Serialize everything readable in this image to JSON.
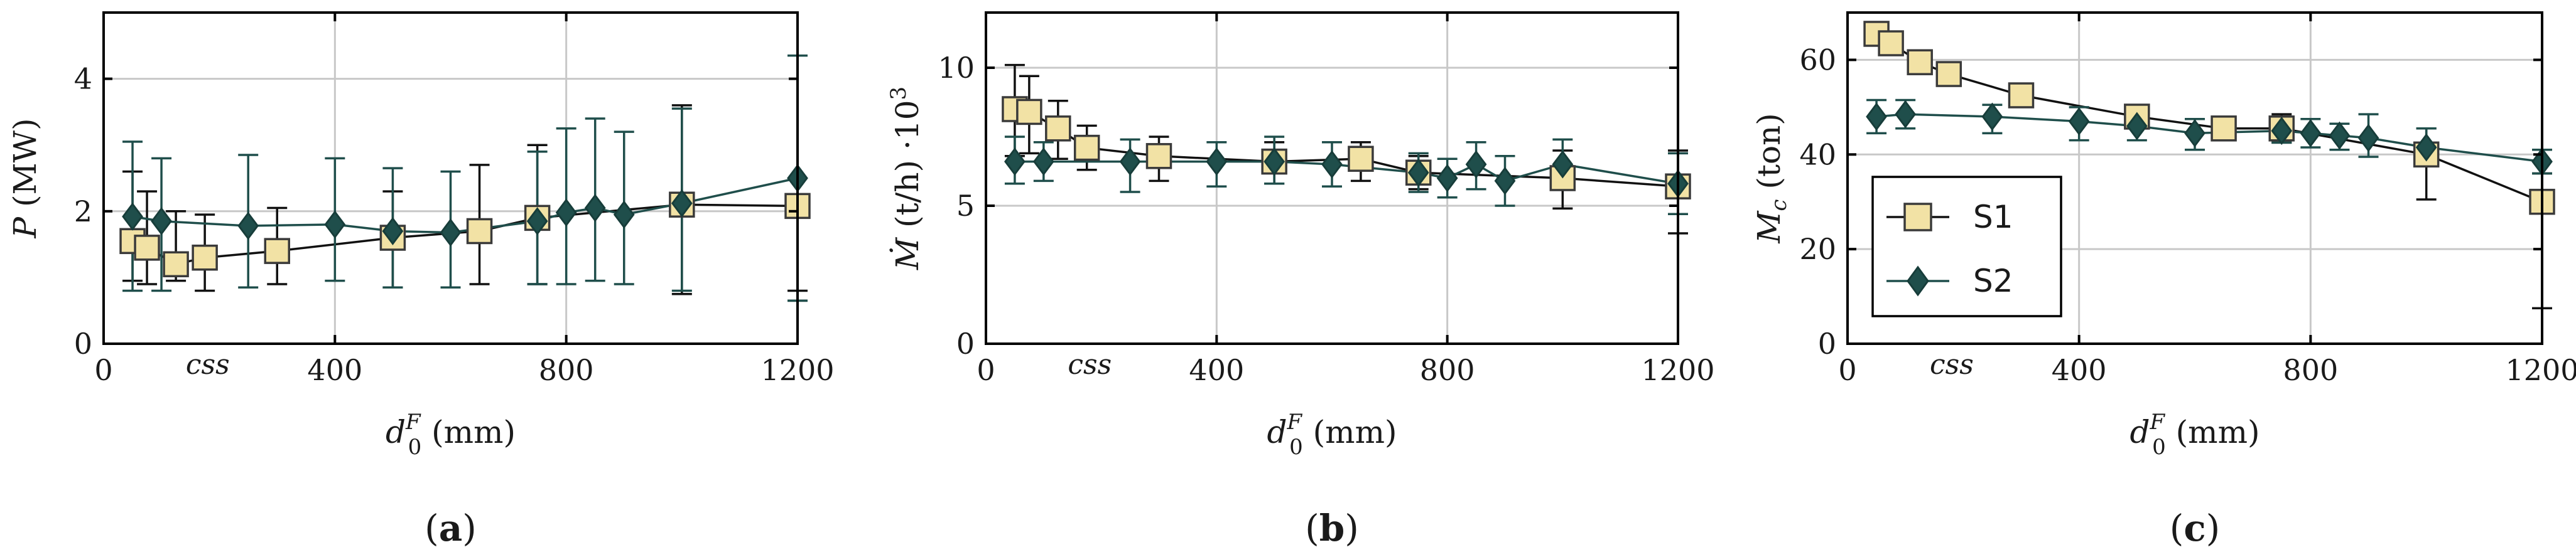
{
  "chart_data": [
    {
      "type": "line",
      "panel_label": "a",
      "ylabel": "P (MW)",
      "ylabel_main": "P",
      "ylabel_unit": " (MW)",
      "xlabel_var": "d",
      "xlabel_sup": "F",
      "xlabel_sub": "0",
      "xlabel_unit": " (mm)",
      "xlim": [
        0,
        1200
      ],
      "ylim": [
        0,
        5
      ],
      "x_ticks": [
        0,
        400,
        800,
        1200
      ],
      "x_tick_labels": [
        "0",
        "400",
        "800",
        "1200"
      ],
      "y_ticks": [
        0,
        2,
        4
      ],
      "y_tick_labels": [
        "0",
        "2",
        "4"
      ],
      "annotation": {
        "text": "css",
        "x": 180
      },
      "grid": true,
      "series": [
        {
          "name": "S1",
          "marker": "square",
          "color": "#f2e2a5",
          "edge": "#3a3a3a",
          "line": "#111111",
          "x": [
            50,
            75,
            125,
            175,
            300,
            500,
            650,
            750,
            1000,
            1200
          ],
          "y": [
            1.55,
            1.45,
            1.2,
            1.3,
            1.4,
            1.6,
            1.7,
            1.9,
            2.1,
            2.08
          ],
          "err_low": [
            0.95,
            0.9,
            0.95,
            0.8,
            0.9,
            0.85,
            0.9,
            0.9,
            0.75,
            0.65
          ],
          "err_high": [
            2.6,
            2.3,
            2.0,
            1.95,
            2.05,
            2.3,
            2.7,
            3.0,
            3.6,
            0.8
          ]
        },
        {
          "name": "S2",
          "marker": "diamond",
          "color": "#1f4e4b",
          "edge": "#173d3a",
          "line": "#1f4e4b",
          "x": [
            50,
            100,
            250,
            400,
            500,
            600,
            750,
            800,
            850,
            900,
            1000,
            1200
          ],
          "y": [
            1.92,
            1.85,
            1.78,
            1.8,
            1.7,
            1.68,
            1.85,
            1.98,
            2.05,
            1.95,
            2.12,
            2.5
          ],
          "err_low": [
            0.8,
            0.8,
            0.85,
            0.95,
            0.85,
            0.85,
            0.9,
            0.9,
            0.95,
            0.9,
            0.8,
            0.65
          ],
          "err_high": [
            3.05,
            2.8,
            2.85,
            2.8,
            2.65,
            2.6,
            2.9,
            3.25,
            3.4,
            3.2,
            3.55,
            4.35
          ]
        }
      ]
    },
    {
      "type": "line",
      "panel_label": "b",
      "ylabel": "Ṁ (t/h) ·10³",
      "ylabel_main": "Ṁ",
      "ylabel_unit": " (t/h) ·10",
      "ylabel_sup": "3",
      "xlabel_var": "d",
      "xlabel_sup": "F",
      "xlabel_sub": "0",
      "xlabel_unit": " (mm)",
      "xlim": [
        0,
        1200
      ],
      "ylim": [
        0,
        12
      ],
      "x_ticks": [
        0,
        400,
        800,
        1200
      ],
      "x_tick_labels": [
        "0",
        "400",
        "800",
        "1200"
      ],
      "y_ticks": [
        0,
        5,
        10
      ],
      "y_tick_labels": [
        "0",
        "5",
        "10"
      ],
      "annotation": {
        "text": "css",
        "x": 180
      },
      "grid": true,
      "series": [
        {
          "name": "S1",
          "marker": "square",
          "color": "#f2e2a5",
          "edge": "#3a3a3a",
          "line": "#111111",
          "x": [
            50,
            75,
            125,
            175,
            300,
            500,
            650,
            750,
            1000,
            1200
          ],
          "y": [
            8.5,
            8.4,
            7.8,
            7.1,
            6.8,
            6.6,
            6.7,
            6.2,
            6.0,
            5.7
          ],
          "err_low": [
            6.8,
            6.9,
            6.7,
            6.3,
            5.9,
            5.8,
            5.9,
            5.6,
            4.9,
            4.0
          ],
          "err_high": [
            10.1,
            9.7,
            8.8,
            7.9,
            7.5,
            7.3,
            7.3,
            6.8,
            7.0,
            7.0
          ]
        },
        {
          "name": "S2",
          "marker": "diamond",
          "color": "#1f4e4b",
          "edge": "#173d3a",
          "line": "#1f4e4b",
          "x": [
            50,
            100,
            250,
            400,
            500,
            600,
            750,
            800,
            850,
            900,
            1000,
            1200
          ],
          "y": [
            6.6,
            6.6,
            6.6,
            6.6,
            6.6,
            6.5,
            6.2,
            6.0,
            6.5,
            5.9,
            6.5,
            5.8
          ],
          "err_low": [
            5.8,
            5.9,
            5.5,
            5.7,
            5.8,
            5.7,
            5.5,
            5.3,
            5.6,
            5.0,
            5.6,
            4.7
          ],
          "err_high": [
            7.5,
            7.3,
            7.4,
            7.3,
            7.5,
            7.3,
            6.9,
            6.7,
            7.3,
            6.8,
            7.4,
            6.9
          ]
        }
      ]
    },
    {
      "type": "line",
      "panel_label": "c",
      "ylabel": "Mc (ton)",
      "ylabel_main": "M",
      "ylabel_sub": "c",
      "ylabel_unit": " (ton)",
      "xlabel_var": "d",
      "xlabel_sup": "F",
      "xlabel_sub": "0",
      "xlabel_unit": " (mm)",
      "xlim": [
        0,
        1200
      ],
      "ylim": [
        0,
        70
      ],
      "x_ticks": [
        0,
        400,
        800,
        1200
      ],
      "x_tick_labels": [
        "0",
        "400",
        "800",
        "1200"
      ],
      "y_ticks": [
        0,
        20,
        40,
        60
      ],
      "y_tick_labels": [
        "0",
        "20",
        "40",
        "60"
      ],
      "annotation": {
        "text": "css",
        "x": 180
      },
      "grid": true,
      "legend": {
        "position": "bottom-left",
        "entries": [
          "S1",
          "S2"
        ]
      },
      "series": [
        {
          "name": "S1",
          "marker": "square",
          "color": "#f2e2a5",
          "edge": "#3a3a3a",
          "line": "#111111",
          "x": [
            50,
            75,
            125,
            175,
            300,
            500,
            650,
            750,
            1000,
            1200
          ],
          "y": [
            65.5,
            63.5,
            59.5,
            57.0,
            52.5,
            48.0,
            45.5,
            45.5,
            40.0,
            30.0
          ],
          "err_low": [
            63.0,
            61.5,
            57.5,
            55.0,
            50.5,
            45.5,
            43.5,
            42.5,
            30.5,
            7.5
          ],
          "err_high": [
            67.5,
            65.5,
            61.5,
            58.5,
            54.0,
            50.0,
            47.5,
            48.5,
            45.5,
            36.0
          ]
        },
        {
          "name": "S2",
          "marker": "diamond",
          "color": "#1f4e4b",
          "edge": "#173d3a",
          "line": "#1f4e4b",
          "x": [
            50,
            100,
            250,
            400,
            500,
            600,
            750,
            800,
            850,
            900,
            1000,
            1200
          ],
          "y": [
            48.0,
            48.5,
            48.0,
            47.0,
            46.0,
            44.5,
            45.0,
            44.5,
            44.0,
            43.5,
            41.5,
            38.5
          ],
          "err_low": [
            44.5,
            45.5,
            44.5,
            43.0,
            43.0,
            41.0,
            42.5,
            41.5,
            41.0,
            39.5,
            38.5,
            36.0
          ],
          "err_high": [
            51.5,
            51.5,
            50.5,
            50.0,
            49.0,
            47.5,
            47.5,
            47.5,
            46.5,
            48.5,
            45.5,
            41.0
          ]
        }
      ]
    }
  ]
}
